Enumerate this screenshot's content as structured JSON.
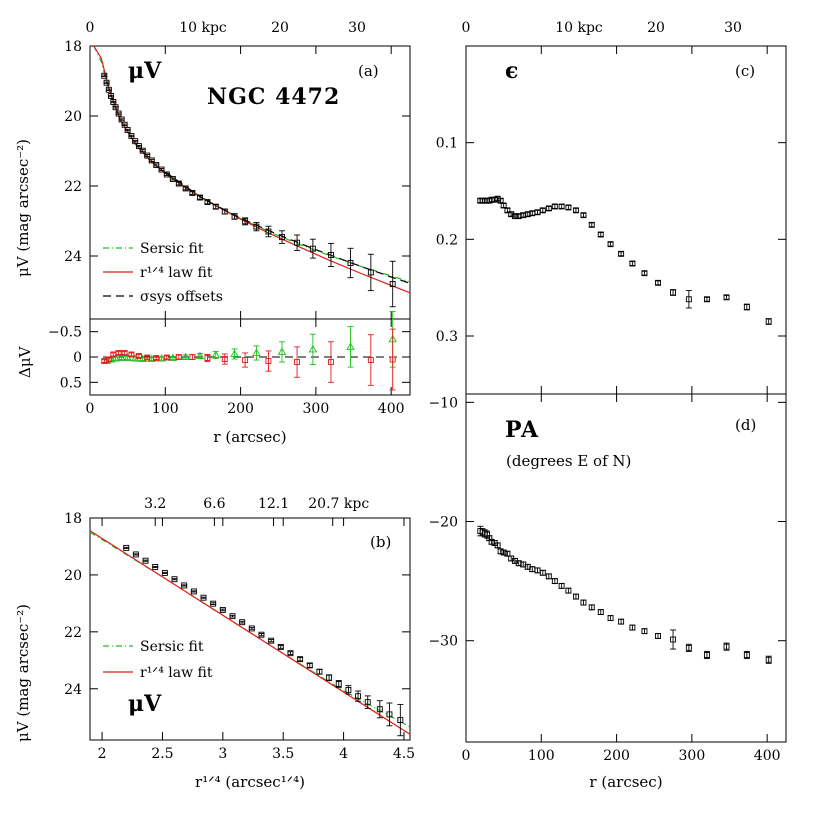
{
  "chart_data": [
    {
      "panel": "a",
      "type": "line",
      "panel_label": "(a)",
      "title": "NGC 4472",
      "quantity_label": "μV",
      "xlabel": "r (arcsec)",
      "ylabel": "μV (mag arcsec⁻²)",
      "top_axis_ticks": [
        "0",
        "10 kpc",
        "20",
        "30"
      ],
      "top_axis_kpc": [
        0,
        10,
        20,
        30
      ],
      "xlim": [
        0,
        425
      ],
      "ylim": [
        18,
        25.8
      ],
      "y_inverted": true,
      "x_ticks": [
        0,
        100,
        200,
        300,
        400
      ],
      "y_ticks": [
        18,
        20,
        22,
        24
      ],
      "legend_position": "lower-left",
      "legend": [
        "Sersic fit",
        "r¹ᐟ⁴ law fit",
        "σsys offsets"
      ],
      "series_colors": {
        "sersic": "#19c219",
        "r14": "#e31a1a",
        "sys": "#000000",
        "data": "#000000"
      },
      "data_points": {
        "x": [
          19,
          22,
          25,
          28,
          31,
          34,
          38,
          42,
          46,
          50,
          55,
          60,
          65,
          70,
          76,
          82,
          88,
          95,
          102,
          110,
          118,
          127,
          136,
          146,
          156,
          167,
          179,
          192,
          206,
          221,
          237,
          255,
          275,
          296,
          320,
          346,
          373,
          402
        ],
        "y": [
          18.85,
          19.05,
          19.25,
          19.43,
          19.6,
          19.75,
          19.93,
          20.1,
          20.25,
          20.4,
          20.57,
          20.72,
          20.86,
          20.99,
          21.13,
          21.27,
          21.4,
          21.53,
          21.67,
          21.8,
          21.93,
          22.07,
          22.2,
          22.33,
          22.46,
          22.59,
          22.73,
          22.87,
          23.01,
          23.16,
          23.3,
          23.46,
          23.62,
          23.79,
          23.97,
          24.2,
          24.47,
          24.8
        ],
        "yerr": [
          0.02,
          0.02,
          0.02,
          0.02,
          0.02,
          0.02,
          0.02,
          0.02,
          0.02,
          0.02,
          0.02,
          0.02,
          0.02,
          0.03,
          0.03,
          0.03,
          0.03,
          0.03,
          0.03,
          0.03,
          0.04,
          0.04,
          0.04,
          0.05,
          0.05,
          0.06,
          0.07,
          0.08,
          0.1,
          0.12,
          0.15,
          0.18,
          0.22,
          0.27,
          0.33,
          0.42,
          0.52,
          0.65
        ]
      },
      "sersic_fit": {
        "x": [
          5,
          15,
          25,
          40,
          60,
          80,
          100,
          130,
          160,
          200,
          240,
          280,
          320,
          360,
          400,
          425
        ],
        "y": [
          17.2,
          18.45,
          19.25,
          20.1,
          20.77,
          21.25,
          21.62,
          22.08,
          22.47,
          22.93,
          23.33,
          23.68,
          24.0,
          24.3,
          24.57,
          24.74
        ]
      },
      "r14_fit": {
        "x": [
          5,
          15,
          25,
          40,
          60,
          80,
          100,
          130,
          160,
          200,
          240,
          280,
          320,
          360,
          400,
          425
        ],
        "y": [
          17.0,
          18.35,
          19.2,
          20.1,
          20.8,
          21.28,
          21.64,
          22.1,
          22.48,
          22.95,
          23.37,
          23.76,
          24.14,
          24.5,
          24.84,
          25.05
        ]
      },
      "sys_offset_fit": {
        "x": [
          100,
          150,
          200,
          250,
          300,
          350,
          400,
          425
        ],
        "y": [
          21.6,
          22.36,
          22.92,
          23.39,
          23.82,
          24.22,
          24.6,
          24.78
        ]
      }
    },
    {
      "panel": "a-residual",
      "type": "scatter",
      "xlabel": "r (arcsec)",
      "ylabel": "ΔμV",
      "xlim": [
        0,
        425
      ],
      "ylim": [
        -0.75,
        0.75
      ],
      "y_ticks": [
        -0.5,
        0,
        0.5
      ],
      "y_tick_labels": [
        "−0.5",
        "0",
        "0.5"
      ],
      "residual_r14": {
        "x": [
          19,
          25,
          31,
          38,
          46,
          55,
          65,
          76,
          88,
          102,
          118,
          136,
          156,
          179,
          206,
          237,
          275,
          320,
          373,
          402
        ],
        "y": [
          0.08,
          0.05,
          -0.05,
          -0.08,
          -0.08,
          -0.05,
          -0.02,
          0.01,
          0.02,
          0.01,
          0.0,
          0.0,
          0.02,
          0.04,
          0.06,
          0.08,
          0.1,
          0.1,
          0.06,
          0.05
        ],
        "yerr": [
          0.03,
          0.03,
          0.03,
          0.03,
          0.03,
          0.03,
          0.03,
          0.03,
          0.03,
          0.03,
          0.04,
          0.05,
          0.07,
          0.1,
          0.14,
          0.2,
          0.3,
          0.4,
          0.5,
          0.6
        ]
      },
      "residual_sersic": {
        "x": [
          22,
          28,
          34,
          42,
          50,
          60,
          70,
          82,
          95,
          110,
          127,
          146,
          167,
          192,
          221,
          255,
          296,
          346,
          402
        ],
        "y": [
          0.08,
          0.05,
          0.03,
          0.02,
          0.02,
          0.03,
          0.04,
          0.04,
          0.03,
          0.02,
          0.0,
          -0.02,
          -0.04,
          -0.06,
          -0.08,
          -0.1,
          -0.15,
          -0.2,
          -0.35
        ],
        "yerr": [
          0.03,
          0.03,
          0.03,
          0.03,
          0.03,
          0.03,
          0.03,
          0.03,
          0.03,
          0.03,
          0.04,
          0.05,
          0.07,
          0.1,
          0.14,
          0.2,
          0.3,
          0.4,
          0.55
        ]
      }
    },
    {
      "panel": "b",
      "type": "line",
      "panel_label": "(b)",
      "quantity_label": "μV",
      "xlabel": "r¹ᐟ⁴ (arcsec¹ᐟ⁴)",
      "ylabel": "μV (mag arcsec⁻²)",
      "xlim": [
        1.9,
        4.55
      ],
      "ylim": [
        18,
        25.8
      ],
      "y_inverted": true,
      "x_ticks": [
        2,
        2.5,
        3,
        3.5,
        4,
        4.5
      ],
      "x_tick_labels": [
        "2",
        "2.5",
        "3",
        "3.5",
        "4",
        "4.5"
      ],
      "y_ticks": [
        18,
        20,
        22,
        24
      ],
      "top_axis_ticks": [
        "3.2",
        "6.6",
        "12.1",
        "20.7 kpc"
      ],
      "top_axis_r14": [
        2.44,
        2.93,
        3.42,
        3.91
      ],
      "legend_position": "lower-left",
      "legend": [
        "Sersic fit",
        "r¹ᐟ⁴ law fit"
      ],
      "data_points": {
        "x": [
          2.2,
          2.28,
          2.36,
          2.44,
          2.52,
          2.6,
          2.68,
          2.76,
          2.84,
          2.92,
          3.0,
          3.08,
          3.16,
          3.24,
          3.32,
          3.4,
          3.48,
          3.56,
          3.64,
          3.72,
          3.8,
          3.88,
          3.96,
          4.04,
          4.12,
          4.2,
          4.3,
          4.38,
          4.47
        ],
        "y": [
          19.05,
          19.28,
          19.5,
          19.72,
          19.93,
          20.15,
          20.37,
          20.58,
          20.8,
          21.01,
          21.23,
          21.45,
          21.66,
          21.88,
          22.1,
          22.31,
          22.53,
          22.75,
          22.96,
          23.18,
          23.4,
          23.61,
          23.83,
          24.04,
          24.26,
          24.47,
          24.72,
          24.9,
          25.1
        ],
        "yerr": [
          0.02,
          0.02,
          0.02,
          0.02,
          0.02,
          0.02,
          0.02,
          0.02,
          0.02,
          0.03,
          0.03,
          0.03,
          0.03,
          0.03,
          0.04,
          0.04,
          0.05,
          0.05,
          0.06,
          0.07,
          0.08,
          0.1,
          0.12,
          0.15,
          0.18,
          0.22,
          0.3,
          0.4,
          0.55
        ]
      },
      "sersic_fit": {
        "x": [
          1.9,
          2.5,
          3.0,
          3.5,
          4.0,
          4.55
        ],
        "y": [
          18.5,
          20.07,
          21.42,
          22.76,
          24.07,
          25.34
        ]
      },
      "r14_fit": {
        "x": [
          1.9,
          4.55
        ],
        "y": [
          18.45,
          25.6
        ]
      }
    },
    {
      "panel": "c",
      "type": "scatter",
      "panel_label": "(c)",
      "quantity_label": "ϵ",
      "xlim": [
        0,
        425
      ],
      "ylim": [
        0,
        0.36
      ],
      "x_ticks": [
        0,
        100,
        200,
        300,
        400
      ],
      "y_ticks": [
        0.1,
        0.2,
        0.3
      ],
      "top_axis_ticks": [
        "0",
        "10 kpc",
        "20",
        "30"
      ],
      "top_axis_kpc": [
        0,
        10,
        20,
        30
      ],
      "data_points": {
        "x": [
          19,
          22,
          25,
          28,
          31,
          34,
          38,
          42,
          46,
          50,
          55,
          60,
          65,
          70,
          76,
          82,
          88,
          95,
          102,
          110,
          118,
          127,
          136,
          146,
          156,
          167,
          179,
          192,
          206,
          221,
          237,
          255,
          275,
          296,
          320,
          346,
          373,
          402
        ],
        "y": [
          0.16,
          0.16,
          0.16,
          0.16,
          0.16,
          0.159,
          0.159,
          0.158,
          0.16,
          0.165,
          0.17,
          0.174,
          0.176,
          0.176,
          0.175,
          0.174,
          0.173,
          0.172,
          0.17,
          0.168,
          0.166,
          0.166,
          0.167,
          0.17,
          0.175,
          0.185,
          0.195,
          0.205,
          0.215,
          0.225,
          0.235,
          0.245,
          0.255,
          0.262,
          0.262,
          0.26,
          0.27,
          0.285
        ],
        "yerr": [
          0.002,
          0.002,
          0.002,
          0.002,
          0.002,
          0.002,
          0.002,
          0.002,
          0.002,
          0.002,
          0.002,
          0.002,
          0.002,
          0.002,
          0.002,
          0.002,
          0.002,
          0.002,
          0.002,
          0.002,
          0.002,
          0.002,
          0.002,
          0.002,
          0.002,
          0.002,
          0.002,
          0.002,
          0.002,
          0.002,
          0.002,
          0.002,
          0.003,
          0.009,
          0.002,
          0.002,
          0.003,
          0.003
        ]
      }
    },
    {
      "panel": "d",
      "type": "scatter",
      "panel_label": "(d)",
      "title": "PA",
      "subtitle": "(degrees E of N)",
      "xlabel": "r (arcsec)",
      "xlim": [
        0,
        425
      ],
      "ylim": [
        -9.3,
        -38.5
      ],
      "y_inverted": true,
      "x_ticks": [
        0,
        100,
        200,
        300,
        400
      ],
      "y_ticks": [
        -10,
        -20,
        -30
      ],
      "y_tick_labels": [
        "−10",
        "−20",
        "−30"
      ],
      "data_points": {
        "x": [
          19,
          22,
          25,
          28,
          31,
          34,
          38,
          42,
          46,
          50,
          55,
          60,
          65,
          70,
          76,
          82,
          88,
          95,
          102,
          110,
          118,
          127,
          136,
          146,
          156,
          167,
          179,
          192,
          206,
          221,
          237,
          255,
          275,
          296,
          320,
          346,
          373,
          402
        ],
        "y": [
          -20.8,
          -20.9,
          -21.0,
          -21.1,
          -21.4,
          -21.7,
          -21.8,
          -22.0,
          -22.5,
          -22.6,
          -22.7,
          -23.1,
          -23.3,
          -23.5,
          -23.6,
          -23.8,
          -24.0,
          -24.1,
          -24.3,
          -24.6,
          -25.0,
          -25.4,
          -25.8,
          -26.3,
          -26.8,
          -27.2,
          -27.6,
          -28.1,
          -28.4,
          -28.9,
          -29.2,
          -29.6,
          -29.9,
          -30.6,
          -31.2,
          -30.5,
          -31.2,
          -31.6
        ],
        "yerr": [
          0.4,
          0.3,
          0.3,
          0.3,
          0.2,
          0.2,
          0.2,
          0.2,
          0.2,
          0.2,
          0.2,
          0.2,
          0.2,
          0.2,
          0.2,
          0.2,
          0.2,
          0.2,
          0.2,
          0.2,
          0.2,
          0.2,
          0.2,
          0.2,
          0.2,
          0.2,
          0.2,
          0.2,
          0.2,
          0.2,
          0.2,
          0.2,
          0.8,
          0.3,
          0.3,
          0.3,
          0.3,
          0.3
        ]
      }
    }
  ]
}
